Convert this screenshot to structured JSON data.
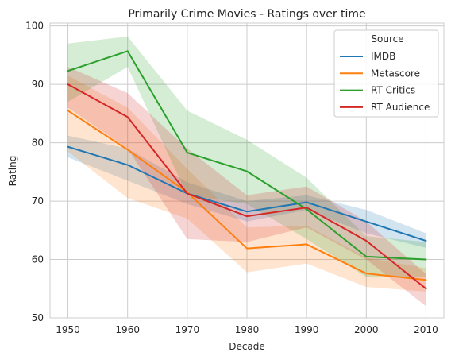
{
  "chart_data": {
    "type": "line",
    "title": "Primarily Crime Movies - Ratings over time",
    "xlabel": "Decade",
    "ylabel": "Rating",
    "x": [
      1950,
      1960,
      1970,
      1980,
      1990,
      2000,
      2010
    ],
    "xticks": [
      "1950",
      "1960",
      "1970",
      "1980",
      "1990",
      "2000",
      "2010"
    ],
    "yticks": [
      "50",
      "60",
      "70",
      "80",
      "90",
      "100"
    ],
    "xlim": [
      1947,
      2013
    ],
    "ylim": [
      50,
      100.5
    ],
    "grid": true,
    "legend": {
      "title": "Source",
      "placement": "top-right"
    },
    "series": [
      {
        "name": "IMDB",
        "color": "#1f77b4",
        "values": [
          79.3,
          76.2,
          71.3,
          68.2,
          69.8,
          66.5,
          63.2
        ],
        "ci_low": [
          77.5,
          73.5,
          69.5,
          66.5,
          68.5,
          64.5,
          62.0
        ],
        "ci_high": [
          81.2,
          79.0,
          73.2,
          70.0,
          71.0,
          68.5,
          64.5
        ]
      },
      {
        "name": "Metascore",
        "color": "#ff7f0e",
        "values": [
          85.5,
          78.8,
          71.5,
          61.9,
          62.6,
          57.6,
          56.5
        ],
        "ci_low": [
          78.5,
          70.5,
          67.0,
          57.8,
          59.3,
          55.3,
          54.5
        ],
        "ci_high": [
          91.5,
          86.0,
          75.5,
          65.5,
          65.8,
          60.3,
          58.5
        ]
      },
      {
        "name": "RT Critics",
        "color": "#2ca02c",
        "values": [
          92.3,
          95.7,
          78.3,
          75.1,
          68.6,
          60.5,
          60.0
        ],
        "ci_low": [
          87.0,
          93.0,
          71.0,
          69.5,
          63.5,
          57.0,
          57.0
        ],
        "ci_high": [
          97.0,
          98.2,
          85.5,
          80.5,
          74.0,
          64.0,
          63.0
        ]
      },
      {
        "name": "RT Audience",
        "color": "#d62728",
        "values": [
          90.0,
          84.4,
          71.3,
          67.4,
          68.9,
          63.2,
          55.0
        ],
        "ci_low": [
          86.0,
          79.0,
          63.5,
          63.0,
          65.5,
          60.0,
          52.0
        ],
        "ci_high": [
          93.0,
          88.5,
          79.0,
          71.0,
          72.5,
          66.5,
          57.5
        ]
      }
    ]
  }
}
